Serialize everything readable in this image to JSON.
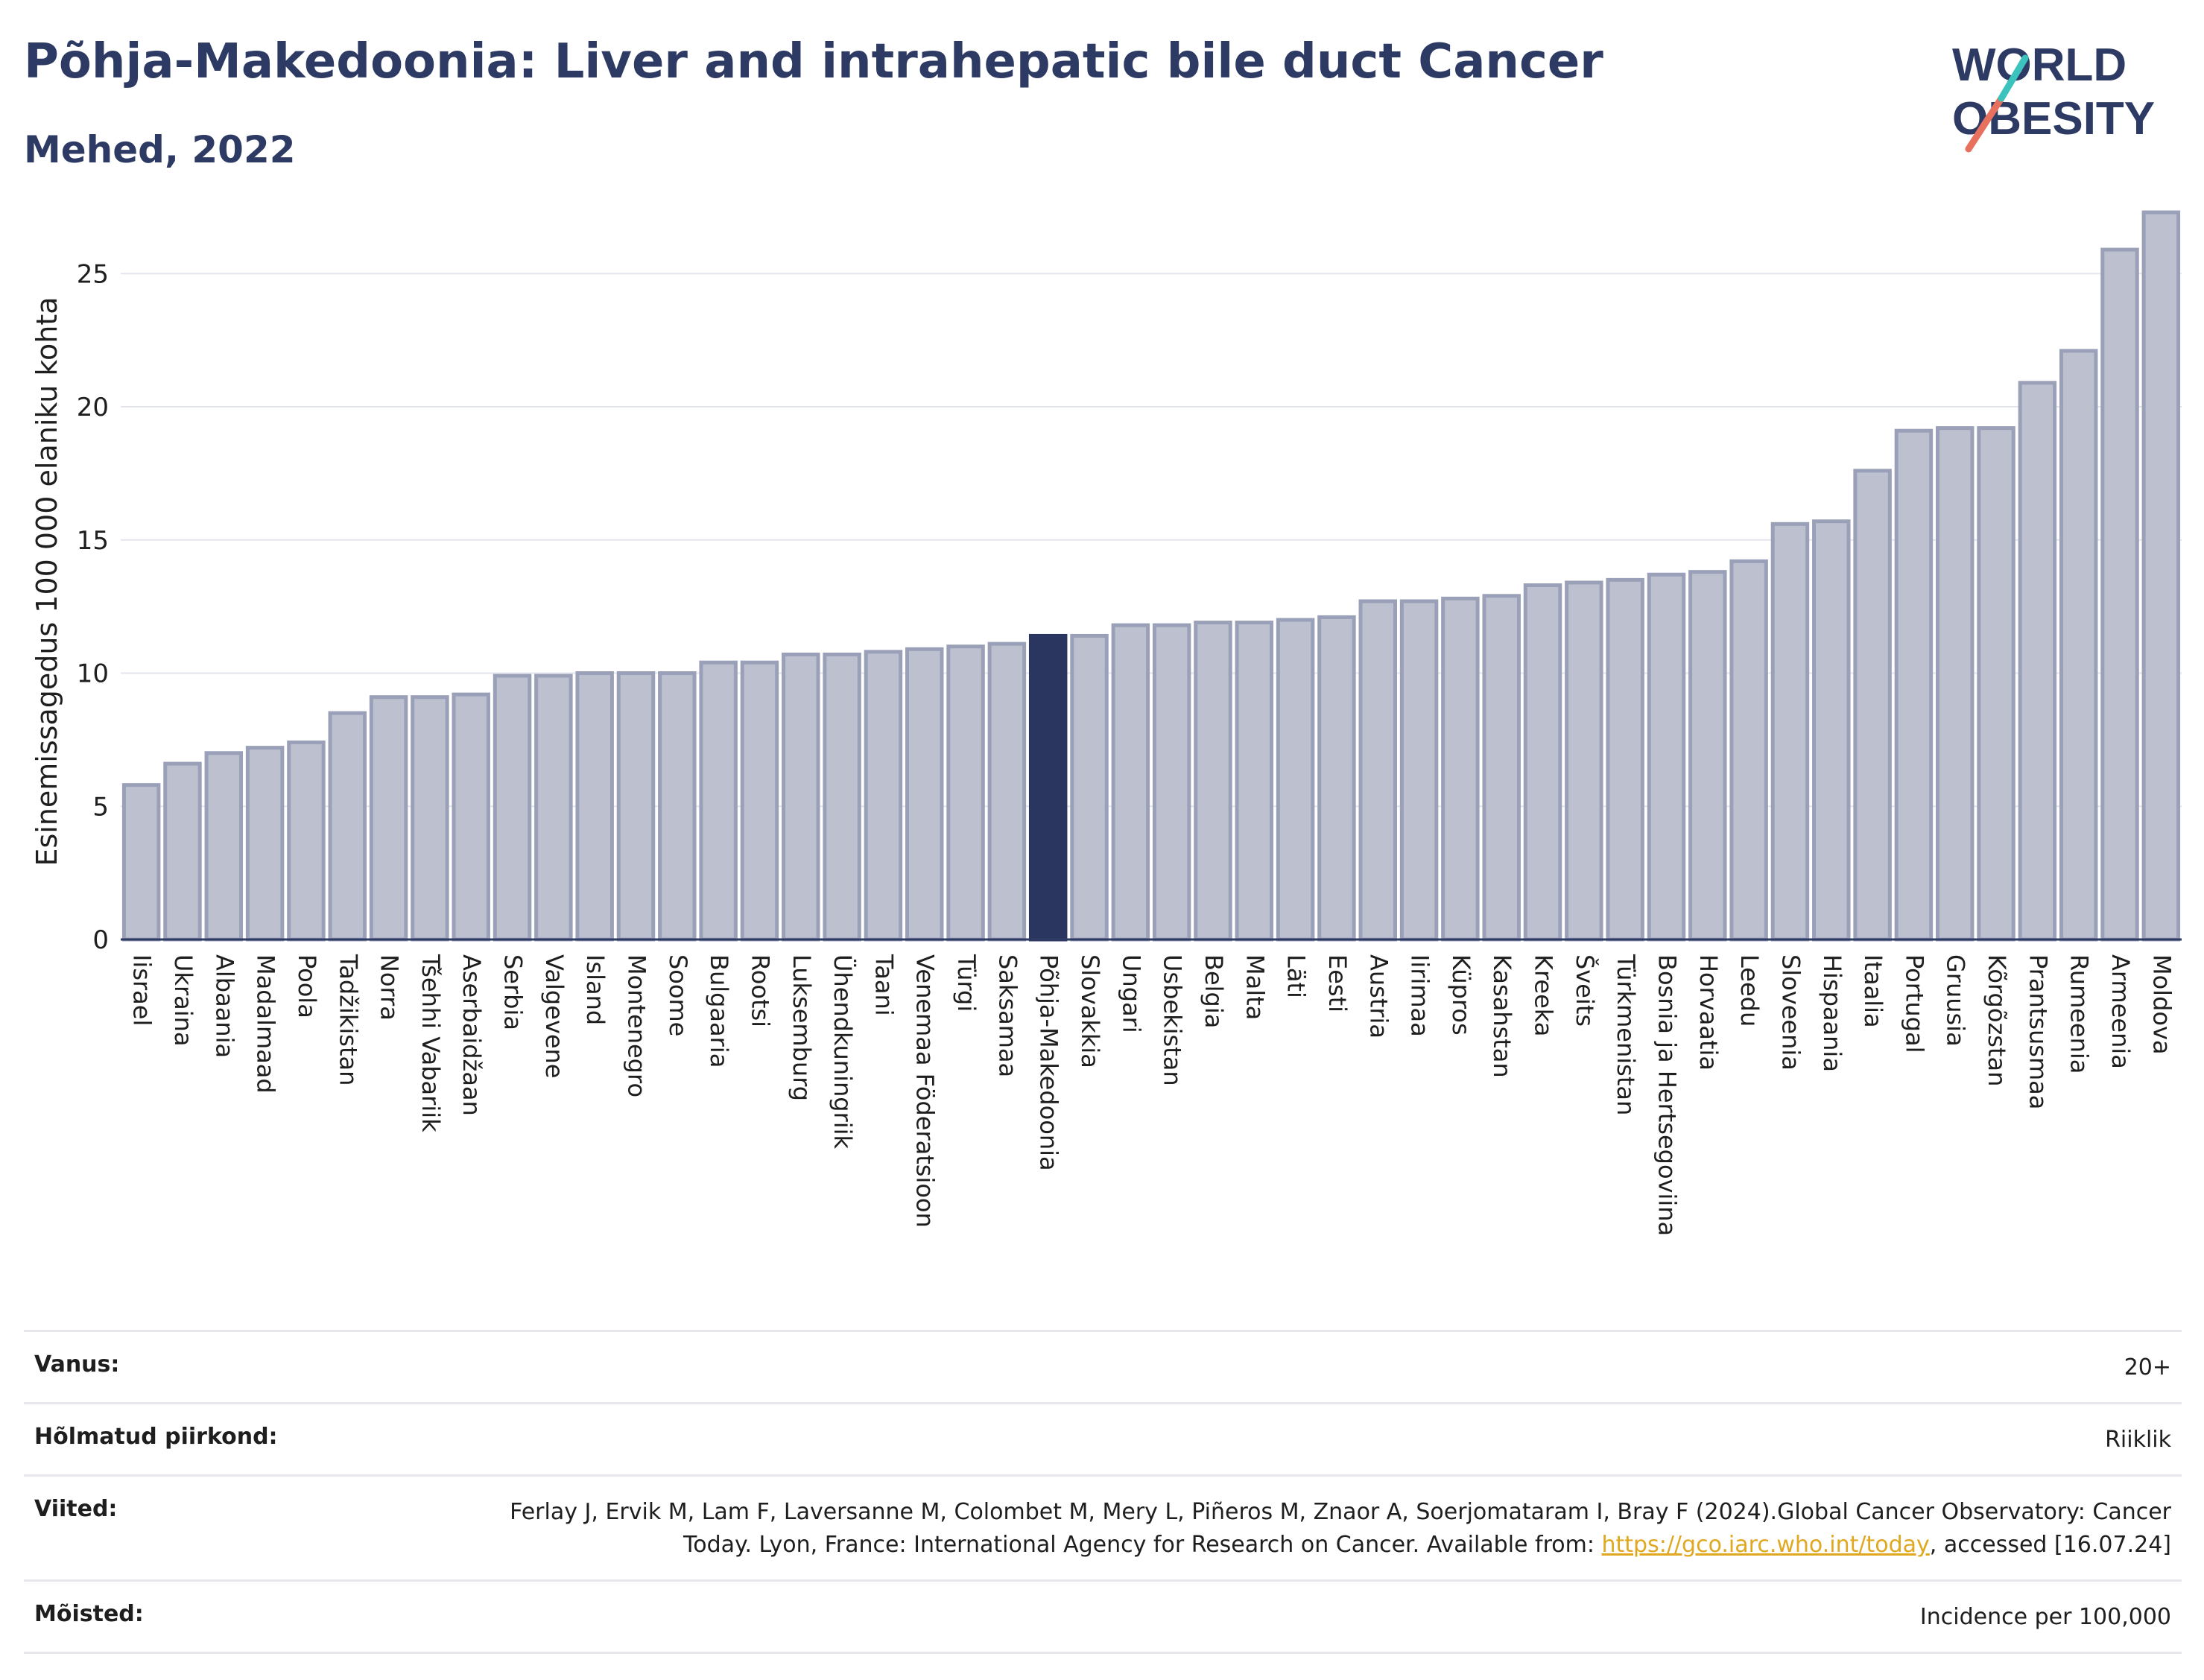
{
  "title": "Põhja-Makedoonia: Liver and intrahepatic bile duct Cancer",
  "subtitle": "Mehed, 2022",
  "logo": {
    "line1": "WORLD",
    "line2": "OBESITY"
  },
  "colors": {
    "bar": "#bcc0cf",
    "bar_stroke": "#9aa0b8",
    "highlight": "#2b3660",
    "grid": "#e3e5ec",
    "text": "#2d3a64"
  },
  "chart_data": {
    "type": "bar",
    "ylabel": "Esinemissagedus 100 000 elaniku kohta",
    "xlabel": "",
    "ylim": [
      0,
      28
    ],
    "yticks": [
      0,
      5,
      10,
      15,
      20,
      25
    ],
    "highlight": "Põhja-Makedoonia",
    "categories": [
      "Iisrael",
      "Ukraina",
      "Albaania",
      "Madalmaad",
      "Poola",
      "Tadžikistan",
      "Norra",
      "Tšehhi Vabariik",
      "Aserbaidžaan",
      "Serbia",
      "Valgevene",
      "Island",
      "Montenegro",
      "Soome",
      "Bulgaaria",
      "Rootsi",
      "Luksemburg",
      "Ühendkuningriik",
      "Taani",
      "Venemaa Föderatsioon",
      "Türgi",
      "Saksamaa",
      "Põhja-Makedoonia",
      "Slovakkia",
      "Ungari",
      "Usbekistan",
      "Belgia",
      "Malta",
      "Läti",
      "Eesti",
      "Austria",
      "Iirimaa",
      "Küpros",
      "Kasahstan",
      "Kreeka",
      "Šveits",
      "Türkmenistan",
      "Bosnia ja Hertsegoviina",
      "Horvaatia",
      "Leedu",
      "Sloveenia",
      "Hispaania",
      "Itaalia",
      "Portugal",
      "Gruusia",
      "Kõrgõzstan",
      "Prantsusmaa",
      "Rumeenia",
      "Armeenia",
      "Moldova"
    ],
    "values": [
      5.8,
      6.6,
      7.0,
      7.2,
      7.4,
      8.5,
      9.1,
      9.1,
      9.2,
      9.9,
      9.9,
      10.0,
      10.0,
      10.0,
      10.4,
      10.4,
      10.7,
      10.7,
      10.8,
      10.9,
      11.0,
      11.1,
      11.4,
      11.4,
      11.8,
      11.8,
      11.9,
      11.9,
      12.0,
      12.1,
      12.7,
      12.7,
      12.8,
      12.9,
      13.3,
      13.4,
      13.5,
      13.7,
      13.8,
      14.2,
      15.6,
      15.7,
      17.6,
      19.1,
      19.2,
      19.2,
      20.9,
      22.1,
      25.9,
      27.3
    ]
  },
  "meta": {
    "age": {
      "label": "Vanus:",
      "value": "20+"
    },
    "region": {
      "label": "Hõlmatud piirkond:",
      "value": "Riiklik"
    },
    "refs": {
      "label": "Viited:",
      "text1": "Ferlay J, Ervik M, Lam F, Laversanne M, Colombet M, Mery L, Piñeros M, Znaor A, Soerjomataram I, Bray F (2024).Global Cancer Observatory: Cancer Today. Lyon, France: International Agency for Research on Cancer. Available from: ",
      "link": "https://gco.iarc.who.int/today",
      "text2": ", accessed [16.07.24]"
    },
    "definitions": {
      "label": "Mõisted:",
      "value": "Incidence per 100,000"
    }
  }
}
